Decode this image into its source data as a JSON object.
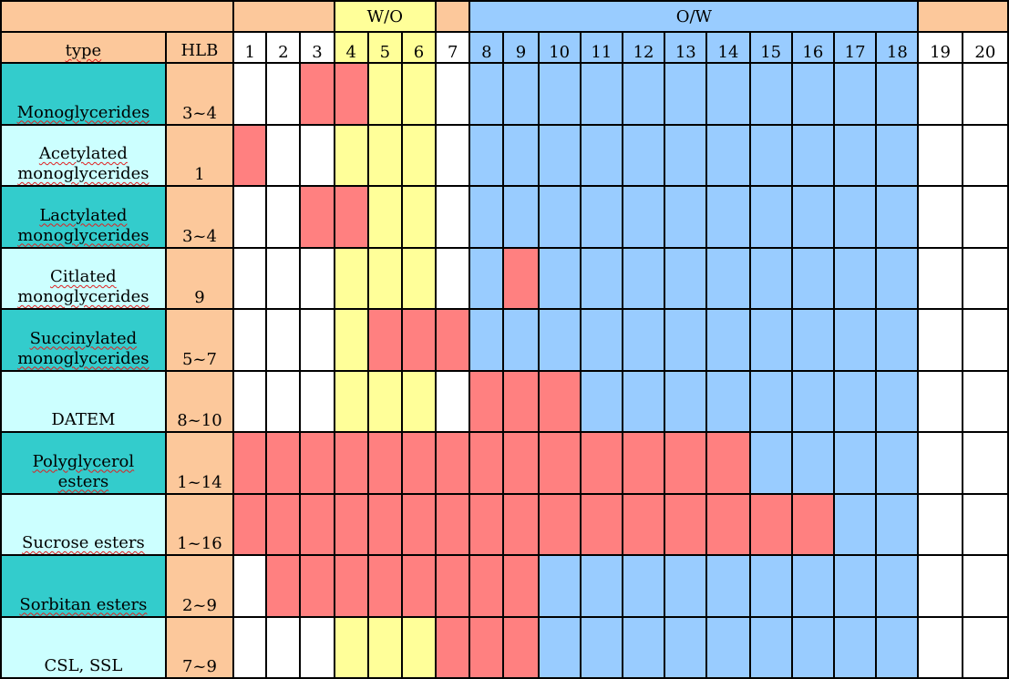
{
  "header": {
    "type_label": "type",
    "hlb_label": "HLB",
    "wo_label": "W/O",
    "ow_label": "O/W",
    "numbers": [
      "1",
      "2",
      "3",
      "4",
      "5",
      "6",
      "7",
      "8",
      "9",
      "10",
      "11",
      "12",
      "13",
      "14",
      "15",
      "16",
      "17",
      "18",
      "19",
      "20"
    ]
  },
  "colors": {
    "header_orange": "#fcc89b",
    "wo_yellow": "#ffff99",
    "ow_blue": "#99ccff",
    "highlight_red": "#ff8080",
    "type_dark": "#33cccc",
    "type_light": "#ccffff",
    "white": "#ffffff"
  },
  "wo_range": [
    4,
    6
  ],
  "ow_range": [
    8,
    18
  ],
  "rows": [
    {
      "type": [
        "Monoglycerides"
      ],
      "hlb": "3~4",
      "range": [
        3,
        4
      ]
    },
    {
      "type": [
        "Acetylated",
        "monoglycerides"
      ],
      "hlb": "1",
      "range": [
        1,
        1
      ]
    },
    {
      "type": [
        "Lactylated",
        "monoglycerides"
      ],
      "hlb": "3~4",
      "range": [
        3,
        4
      ]
    },
    {
      "type": [
        "Citlated",
        "monoglycerides"
      ],
      "hlb": "9",
      "range": [
        9,
        9
      ]
    },
    {
      "type": [
        "Succinylated",
        "monoglycerides"
      ],
      "hlb": "5~7",
      "range": [
        5,
        7
      ]
    },
    {
      "type": [
        "DATEM"
      ],
      "hlb": "8~10",
      "range": [
        8,
        10
      ]
    },
    {
      "type": [
        "Polyglycerol",
        "esters"
      ],
      "hlb": "1~14",
      "range": [
        1,
        14
      ]
    },
    {
      "type": [
        "Sucrose esters"
      ],
      "hlb": "1~16",
      "range": [
        1,
        16
      ]
    },
    {
      "type": [
        "Sorbitan esters"
      ],
      "hlb": "2~9",
      "range": [
        2,
        9
      ]
    },
    {
      "type": [
        "CSL, SSL"
      ],
      "hlb": "7~9",
      "range": [
        7,
        9
      ]
    }
  ]
}
